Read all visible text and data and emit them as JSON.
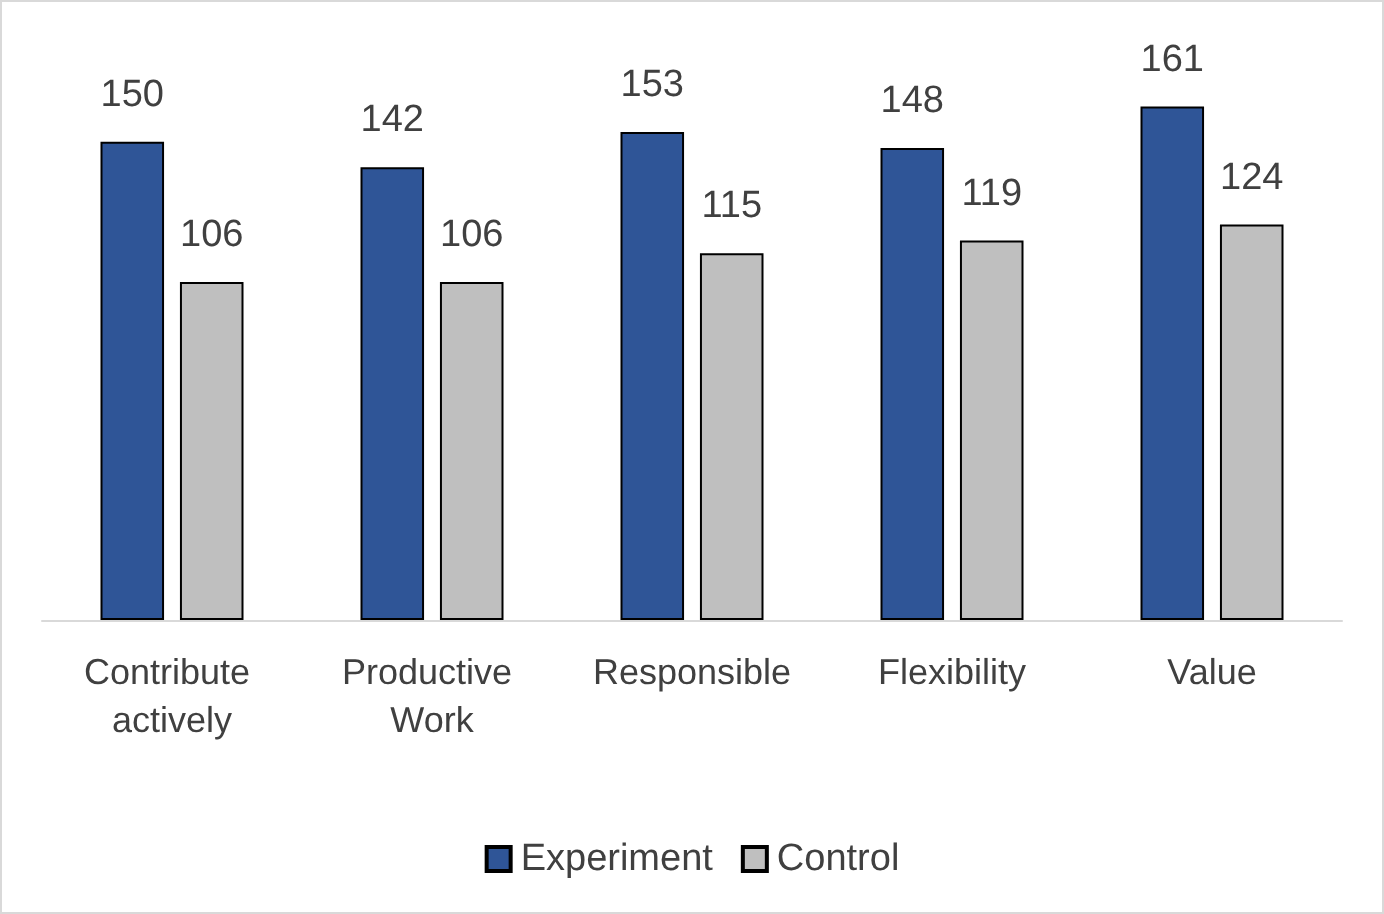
{
  "chart_data": {
    "type": "bar",
    "categories": [
      "Contribute actively",
      "Productive Work",
      "Responsible",
      "Flexibility",
      "Value"
    ],
    "series": [
      {
        "name": "Experiment",
        "color": "#2f5597",
        "values": [
          150,
          142,
          153,
          148,
          161
        ]
      },
      {
        "name": "Control",
        "color": "#bfbfbf",
        "values": [
          106,
          106,
          115,
          119,
          124
        ]
      }
    ],
    "tick_labels": "x",
    "data_labels": true,
    "legend": "bottom"
  }
}
